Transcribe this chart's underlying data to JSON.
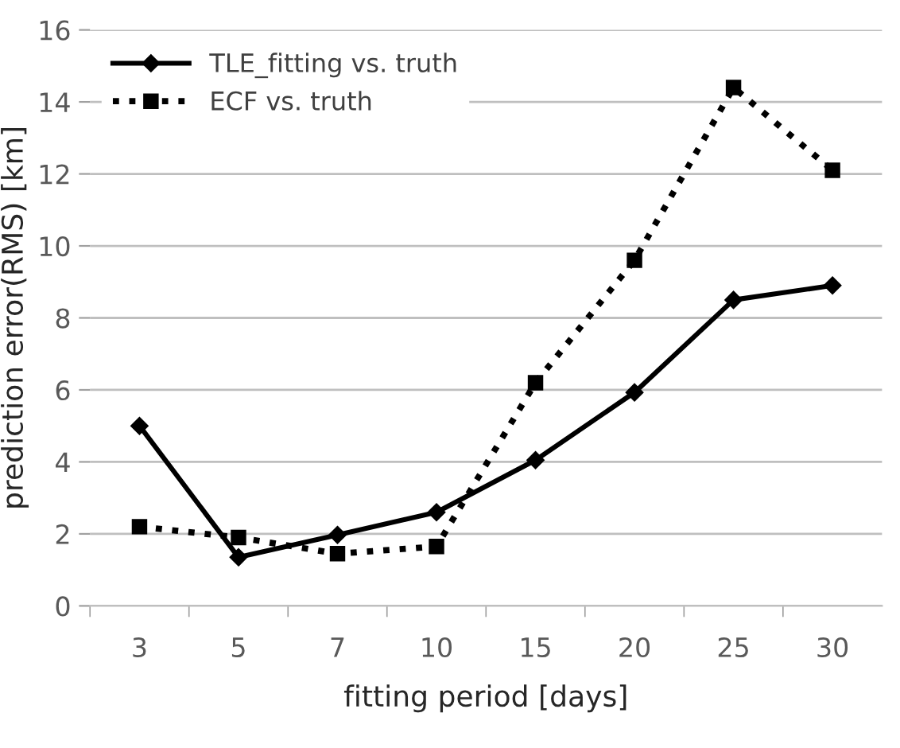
{
  "chart_data": {
    "type": "line",
    "xlabel": "fitting period [days]",
    "ylabel": "prediction error(RMS) [km]",
    "categories": [
      "3",
      "5",
      "7",
      "10",
      "15",
      "20",
      "25",
      "30"
    ],
    "series": [
      {
        "name": "TLE_fitting vs. truth",
        "color": "#000000",
        "values": [
          5.0,
          1.35,
          1.97,
          2.6,
          4.05,
          5.93,
          8.5,
          8.9
        ],
        "marker": "diamond",
        "line_style": "solid"
      },
      {
        "name": "ECF vs. truth",
        "color": "#000000",
        "values": [
          2.2,
          1.9,
          1.45,
          1.65,
          6.2,
          9.6,
          14.4,
          12.1
        ],
        "marker": "square",
        "line_style": "dotted"
      }
    ],
    "ylim": [
      0,
      16
    ],
    "yticks": [
      0,
      2,
      4,
      6,
      8,
      10,
      12,
      14,
      16
    ],
    "grid": "y",
    "legend": "top left"
  }
}
